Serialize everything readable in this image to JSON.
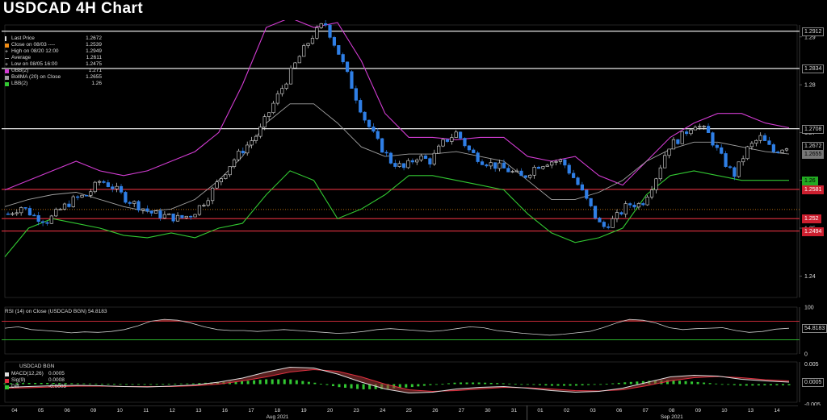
{
  "title": "USDCAD 4H Chart",
  "colors": {
    "up": "#dddddd",
    "down": "#2f7fe6",
    "ubb": "#d23cd2",
    "lbb": "#32c832",
    "bollma": "#a0a0a0",
    "support": "#e03040",
    "resistance": "#ffffff"
  },
  "legend": [
    {
      "label": "Last Price",
      "value": "1.2672",
      "color": "#dddddd",
      "icon": "candle-icon"
    },
    {
      "label": "Close on 08/03 ----",
      "value": "1.2539",
      "color": "#f08c14",
      "icon": "square-icon"
    },
    {
      "label": "High on 08/20 12:00",
      "value": "1.2949",
      "color": "#dddddd",
      "icon": "plus-icon"
    },
    {
      "label": "Average",
      "value": "1.2611",
      "color": "#a0a0a0",
      "icon": "line-icon"
    },
    {
      "label": "Low on 08/05 16:00",
      "value": "1.2475",
      "color": "#dddddd",
      "icon": "plus-icon"
    },
    {
      "label": "UBB(2)",
      "value": "1.271",
      "color": "#d23cd2",
      "icon": "square-icon"
    },
    {
      "label": "BollMA (20)  on Close",
      "value": "1.2655",
      "color": "#a0a0a0",
      "icon": "square-icon"
    },
    {
      "label": "LBB(2)",
      "value": "1.26",
      "color": "#32c832",
      "icon": "square-icon"
    }
  ],
  "price_tags": [
    {
      "text": "1.2912",
      "value": 1.2912,
      "bg": "#000000",
      "fg": "#dddddd",
      "border": "#888888"
    },
    {
      "text": "1.2834",
      "value": 1.2834,
      "bg": "#000000",
      "fg": "#dddddd",
      "border": "#888888"
    },
    {
      "text": "1.2708",
      "value": 1.2708,
      "bg": "#000000",
      "fg": "#dddddd",
      "border": "#888888"
    },
    {
      "text": "1.2672",
      "value": 1.2672,
      "bg": "#000000",
      "fg": "#dddddd",
      "border": "#888888"
    },
    {
      "text": "1.2655",
      "value": 1.2655,
      "bg": "#777777",
      "fg": "#000000",
      "border": "#777777"
    },
    {
      "text": "1.26",
      "value": 1.26,
      "bg": "#22aa22",
      "fg": "#000000",
      "border": "#22aa22"
    },
    {
      "text": "1.2581",
      "value": 1.2581,
      "bg": "#cc1f2f",
      "fg": "#ffffff",
      "border": "#cc1f2f"
    },
    {
      "text": "1.252",
      "value": 1.252,
      "bg": "#cc1f2f",
      "fg": "#ffffff",
      "border": "#cc1f2f"
    },
    {
      "text": "1.2494",
      "value": 1.2494,
      "bg": "#cc1f2f",
      "fg": "#ffffff",
      "border": "#cc1f2f"
    }
  ],
  "rsi": {
    "label": "RSI (14)  on Close (USDCAD BGN) 54.8183",
    "value_tag": "54.8183",
    "ticks": [
      "100",
      "50",
      "0"
    ]
  },
  "macd": {
    "title": "USDCAD BGN",
    "legend": [
      {
        "label": "MACD(12,26)",
        "value": "0.0005",
        "color": "#dddddd"
      },
      {
        "label": "Sig(9)",
        "value": "0.0008",
        "color": "#e03040"
      },
      {
        "label": "Diff",
        "value": "-0.0003",
        "color": "#32c832"
      }
    ],
    "ticks": [
      "0.005",
      "-0.005"
    ],
    "value_tag": "0.0005"
  },
  "x_axis": {
    "day_labels": [
      "04",
      "05",
      "06",
      "09",
      "10",
      "11",
      "12",
      "13",
      "16",
      "17",
      "18",
      "19",
      "20",
      "23",
      "24",
      "25",
      "26",
      "27",
      "30",
      "31",
      "01",
      "02",
      "03",
      "06",
      "07",
      "08",
      "09",
      "10",
      "13",
      "14"
    ],
    "month_labels": [
      {
        "text": "Aug 2021",
        "at": 10
      },
      {
        "text": "Sep 2021",
        "at": 25
      }
    ]
  },
  "chart_data": {
    "type": "candlestick",
    "title": "USDCAD 4H Chart",
    "y_ticks": [
      1.24,
      1.25,
      1.26,
      1.27,
      1.28,
      1.29
    ],
    "ylim": [
      1.2355,
      1.2925
    ],
    "horizontal_lines": {
      "resistance": [
        1.2912,
        1.2834,
        1.2708
      ],
      "support": [
        1.2581,
        1.252,
        1.2494
      ],
      "dotted": [
        1.2539
      ]
    },
    "close_path": [
      1.253,
      1.2545,
      1.2525,
      1.2515,
      1.254,
      1.256,
      1.257,
      1.26,
      1.2585,
      1.256,
      1.2545,
      1.253,
      1.2525,
      1.252,
      1.253,
      1.256,
      1.26,
      1.264,
      1.267,
      1.27,
      1.2755,
      1.2805,
      1.2855,
      1.29,
      1.293,
      1.287,
      1.28,
      1.273,
      1.268,
      1.264,
      1.2625,
      1.265,
      1.264,
      1.268,
      1.27,
      1.266,
      1.264,
      1.263,
      1.262,
      1.2605,
      1.263,
      1.264,
      1.264,
      1.26,
      1.255,
      1.25,
      1.252,
      1.255,
      1.255,
      1.26,
      1.267,
      1.269,
      1.272,
      1.27,
      1.265,
      1.261,
      1.2665,
      1.269,
      1.266,
      1.2672
    ],
    "ubb_path": [
      1.258,
      1.26,
      1.262,
      1.264,
      1.262,
      1.261,
      1.262,
      1.264,
      1.266,
      1.27,
      1.28,
      1.292,
      1.294,
      1.292,
      1.293,
      1.285,
      1.274,
      1.269,
      1.269,
      1.2685,
      1.269,
      1.269,
      1.265,
      1.264,
      1.265,
      1.261,
      1.259,
      1.264,
      1.269,
      1.272,
      1.274,
      1.274,
      1.272,
      1.271
    ],
    "bollma_path": [
      1.2545,
      1.256,
      1.257,
      1.2575,
      1.256,
      1.2545,
      1.2535,
      1.254,
      1.256,
      1.26,
      1.265,
      1.272,
      1.276,
      1.276,
      1.272,
      1.267,
      1.265,
      1.2655,
      1.2655,
      1.266,
      1.265,
      1.264,
      1.26,
      1.256,
      1.256,
      1.2575,
      1.26,
      1.264,
      1.2665,
      1.268,
      1.268,
      1.267,
      1.266,
      1.2655
    ],
    "lbb_path": [
      1.244,
      1.25,
      1.252,
      1.251,
      1.25,
      1.2485,
      1.248,
      1.249,
      1.248,
      1.25,
      1.251,
      1.257,
      1.262,
      1.26,
      1.252,
      1.254,
      1.257,
      1.261,
      1.261,
      1.26,
      1.259,
      1.258,
      1.253,
      1.249,
      1.247,
      1.248,
      1.25,
      1.257,
      1.261,
      1.262,
      1.261,
      1.26,
      1.26,
      1.26
    ],
    "rsi_path": [
      55,
      58,
      52,
      50,
      48,
      45,
      47,
      46,
      48,
      52,
      60,
      70,
      74,
      72,
      66,
      58,
      52,
      50,
      50,
      48,
      50,
      52,
      50,
      48,
      46,
      44,
      45,
      48,
      52,
      54,
      52,
      50,
      48,
      50,
      54,
      58,
      56,
      50,
      47,
      44,
      42,
      40,
      42,
      45,
      48,
      56,
      66,
      74,
      72,
      66,
      56,
      52,
      54,
      55,
      56,
      50,
      46,
      48,
      53,
      54.8
    ],
    "rsi_levels": [
      70,
      30
    ],
    "macd_path": [
      -0.0008,
      -0.0006,
      -0.0004,
      -0.0003,
      -0.0004,
      -0.0006,
      -0.0007,
      -0.0005,
      -0.0002,
      0.0005,
      0.0015,
      0.003,
      0.0042,
      0.004,
      0.0025,
      0.0005,
      -0.0012,
      -0.0022,
      -0.002,
      -0.0012,
      -0.0008,
      -0.0006,
      -0.001,
      -0.0016,
      -0.002,
      -0.0018,
      -0.001,
      0.0004,
      0.0018,
      0.0022,
      0.002,
      0.0012,
      0.0008,
      0.0005
    ],
    "sig_path": [
      -0.001,
      -0.0009,
      -0.0007,
      -0.0005,
      -0.0005,
      -0.0006,
      -0.0006,
      -0.0006,
      -0.0004,
      0.0,
      0.0008,
      0.0018,
      0.003,
      0.0036,
      0.0032,
      0.0018,
      0.0,
      -0.0014,
      -0.0018,
      -0.0016,
      -0.0012,
      -0.0008,
      -0.0009,
      -0.0012,
      -0.0016,
      -0.0017,
      -0.0014,
      -0.0004,
      0.0008,
      0.0016,
      0.0019,
      0.0016,
      0.0011,
      0.0008
    ],
    "macd_ylim": [
      -0.0045,
      0.0055
    ]
  }
}
